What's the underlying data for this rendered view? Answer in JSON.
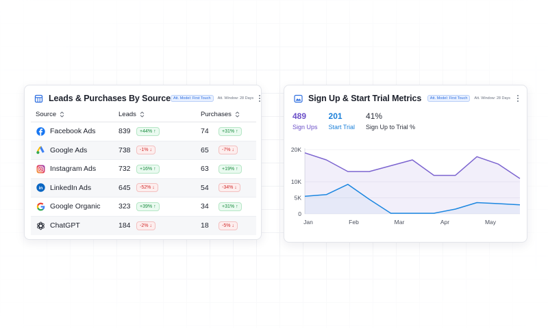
{
  "leads_card": {
    "title": "Leads & Purchases By Source",
    "att_model": "Att. Model: First Touch",
    "att_window": "Att. Window: 28 Days",
    "columns": {
      "source": "Source",
      "leads": "Leads",
      "purchases": "Purchases"
    },
    "rows": [
      {
        "source": "Facebook Ads",
        "icon": "facebook-icon",
        "leads": "839",
        "leads_change": "+44%",
        "leads_dir": "up",
        "purchases": "74",
        "purchases_change": "+31%",
        "purchases_dir": "up"
      },
      {
        "source": "Google Ads",
        "icon": "google-ads-icon",
        "leads": "738",
        "leads_change": "-1%",
        "leads_dir": "down",
        "purchases": "65",
        "purchases_change": "-7%",
        "purchases_dir": "down"
      },
      {
        "source": "Instagram Ads",
        "icon": "instagram-icon",
        "leads": "732",
        "leads_change": "+16%",
        "leads_dir": "up",
        "purchases": "63",
        "purchases_change": "+19%",
        "purchases_dir": "up"
      },
      {
        "source": "LinkedIn Ads",
        "icon": "linkedin-icon",
        "leads": "645",
        "leads_change": "-52%",
        "leads_dir": "down",
        "purchases": "54",
        "purchases_change": "-34%",
        "purchases_dir": "down"
      },
      {
        "source": "Google Organic",
        "icon": "google-icon",
        "leads": "323",
        "leads_change": "+39%",
        "leads_dir": "up",
        "purchases": "34",
        "purchases_change": "+31%",
        "purchases_dir": "up"
      },
      {
        "source": "ChatGPT",
        "icon": "chatgpt-icon",
        "leads": "184",
        "leads_change": "-2%",
        "leads_dir": "down",
        "purchases": "18",
        "purchases_change": "-5%",
        "purchases_dir": "down"
      }
    ]
  },
  "signup_card": {
    "title": "Sign Up & Start Trial Metrics",
    "att_model": "Att. Model: First Touch",
    "att_window": "Att. Window: 28 Days",
    "metrics": {
      "signups_value": "489",
      "signups_label": "Sign Ups",
      "trial_value": "201",
      "trial_label": "Start Trial",
      "rate_value": "41%",
      "rate_label": "Sign Up to Trial %"
    }
  },
  "colors": {
    "purple": "#7b63cf",
    "blue": "#1a86e0",
    "up": "#178a3c",
    "down": "#d12c2c"
  },
  "chart_data": {
    "type": "area",
    "x": [
      "Jan",
      "Jan+",
      "Feb-",
      "Feb",
      "Mar-",
      "Mar",
      "Apr-",
      "Apr",
      "May-",
      "May",
      "Jun-"
    ],
    "x_ticks": [
      "Jan",
      "Feb",
      "Mar",
      "Apr",
      "May"
    ],
    "y_ticks": [
      "20K",
      "10K",
      "5K",
      "0"
    ],
    "ylim": [
      0,
      20000
    ],
    "series": [
      {
        "values": [
          19000,
          16800,
          13200,
          13200,
          15000,
          16800,
          12000,
          12000,
          17800,
          15500,
          11000
        ]
      },
      {
        "values": [
          5500,
          6000,
          9200,
          4500,
          200,
          200,
          200,
          1500,
          3500,
          3200,
          2800
        ]
      }
    ],
    "legend": false,
    "grid": "horizontal"
  }
}
